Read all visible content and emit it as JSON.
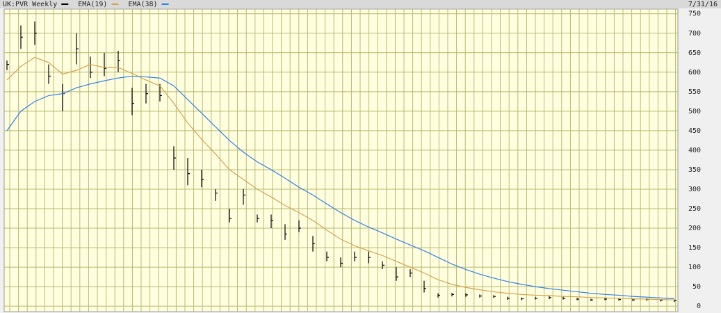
{
  "chart_data": {
    "type": "ohlc",
    "date": "7/31/16",
    "ylim": [
      -14,
      762
    ],
    "yticks": [
      0,
      50,
      100,
      150,
      200,
      250,
      300,
      350,
      400,
      450,
      500,
      550,
      600,
      650,
      700,
      750
    ],
    "grid": true,
    "series": [
      {
        "name": "UK:PVR Weekly",
        "color": "#000000",
        "values": [
          620,
          690,
          700,
          590,
          545,
          660,
          600,
          610,
          630,
          520,
          545,
          540,
          380,
          340,
          325,
          290,
          225,
          285,
          225,
          220,
          185,
          200,
          160,
          125,
          110,
          125,
          125,
          105,
          75,
          85,
          45,
          28,
          30,
          29,
          26,
          25,
          20,
          19,
          20,
          22,
          20,
          18,
          16,
          18,
          17,
          16,
          17,
          15,
          14
        ],
        "high": [
          630,
          720,
          730,
          620,
          570,
          700,
          640,
          650,
          655,
          560,
          570,
          570,
          410,
          380,
          350,
          300,
          250,
          300,
          235,
          235,
          210,
          220,
          180,
          140,
          125,
          140,
          140,
          115,
          100,
          95,
          65,
          33,
          34,
          33,
          30,
          28,
          24,
          22,
          24,
          26,
          24,
          21,
          19,
          22,
          20,
          19,
          20,
          18,
          17
        ],
        "low": [
          605,
          660,
          670,
          570,
          500,
          620,
          585,
          590,
          600,
          490,
          520,
          525,
          350,
          310,
          305,
          270,
          215,
          260,
          215,
          200,
          170,
          190,
          140,
          115,
          100,
          115,
          110,
          95,
          65,
          75,
          35,
          22,
          25,
          24,
          22,
          21,
          16,
          15,
          17,
          18,
          17,
          15,
          13,
          15,
          14,
          13,
          14,
          12,
          11
        ]
      },
      {
        "name": "EMA(19)",
        "color": "#d9a04a",
        "values": [
          580,
          615,
          638,
          625,
          595,
          605,
          620,
          612,
          612,
          597,
          580,
          565,
          520,
          470,
          428,
          390,
          350,
          325,
          300,
          280,
          258,
          240,
          220,
          195,
          172,
          155,
          142,
          130,
          115,
          100,
          85,
          68,
          56,
          48,
          42,
          37,
          33,
          30,
          28,
          27,
          25,
          24,
          22,
          21,
          20,
          19,
          18,
          17,
          16
        ]
      },
      {
        "name": "EMA(38)",
        "color": "#2f80e8",
        "values": [
          450,
          500,
          525,
          540,
          545,
          560,
          570,
          578,
          585,
          590,
          588,
          585,
          565,
          530,
          495,
          460,
          425,
          395,
          370,
          350,
          328,
          305,
          285,
          262,
          240,
          220,
          203,
          188,
          172,
          157,
          142,
          125,
          108,
          94,
          82,
          72,
          63,
          56,
          50,
          45,
          41,
          37,
          33,
          30,
          28,
          25,
          23,
          21,
          19
        ]
      }
    ]
  }
}
